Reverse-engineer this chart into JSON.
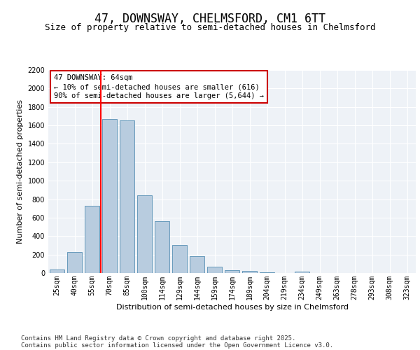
{
  "title": "47, DOWNSWAY, CHELMSFORD, CM1 6TT",
  "subtitle": "Size of property relative to semi-detached houses in Chelmsford",
  "xlabel": "Distribution of semi-detached houses by size in Chelmsford",
  "ylabel": "Number of semi-detached properties",
  "categories": [
    "25sqm",
    "40sqm",
    "55sqm",
    "70sqm",
    "85sqm",
    "100sqm",
    "114sqm",
    "129sqm",
    "144sqm",
    "159sqm",
    "174sqm",
    "189sqm",
    "204sqm",
    "219sqm",
    "234sqm",
    "249sqm",
    "263sqm",
    "278sqm",
    "293sqm",
    "308sqm",
    "323sqm"
  ],
  "values": [
    35,
    225,
    730,
    1670,
    1655,
    845,
    560,
    300,
    185,
    65,
    32,
    20,
    10,
    0,
    12,
    0,
    0,
    0,
    0,
    0,
    0
  ],
  "bar_color": "#b8ccdf",
  "bar_edge_color": "#6699bb",
  "vline_color": "red",
  "property_size": "64sqm",
  "property_name": "47 DOWNSWAY",
  "pct_smaller": 10,
  "count_smaller": 616,
  "pct_larger": 90,
  "count_larger": "5,644",
  "annotation_box_color": "#cc0000",
  "ylim": [
    0,
    2200
  ],
  "yticks": [
    0,
    200,
    400,
    600,
    800,
    1000,
    1200,
    1400,
    1600,
    1800,
    2000,
    2200
  ],
  "bg_color": "#eef2f7",
  "footer_line1": "Contains HM Land Registry data © Crown copyright and database right 2025.",
  "footer_line2": "Contains public sector information licensed under the Open Government Licence v3.0.",
  "title_fontsize": 12,
  "subtitle_fontsize": 9,
  "axis_label_fontsize": 8,
  "tick_fontsize": 7,
  "footer_fontsize": 6.5,
  "annotation_fontsize": 7.5
}
